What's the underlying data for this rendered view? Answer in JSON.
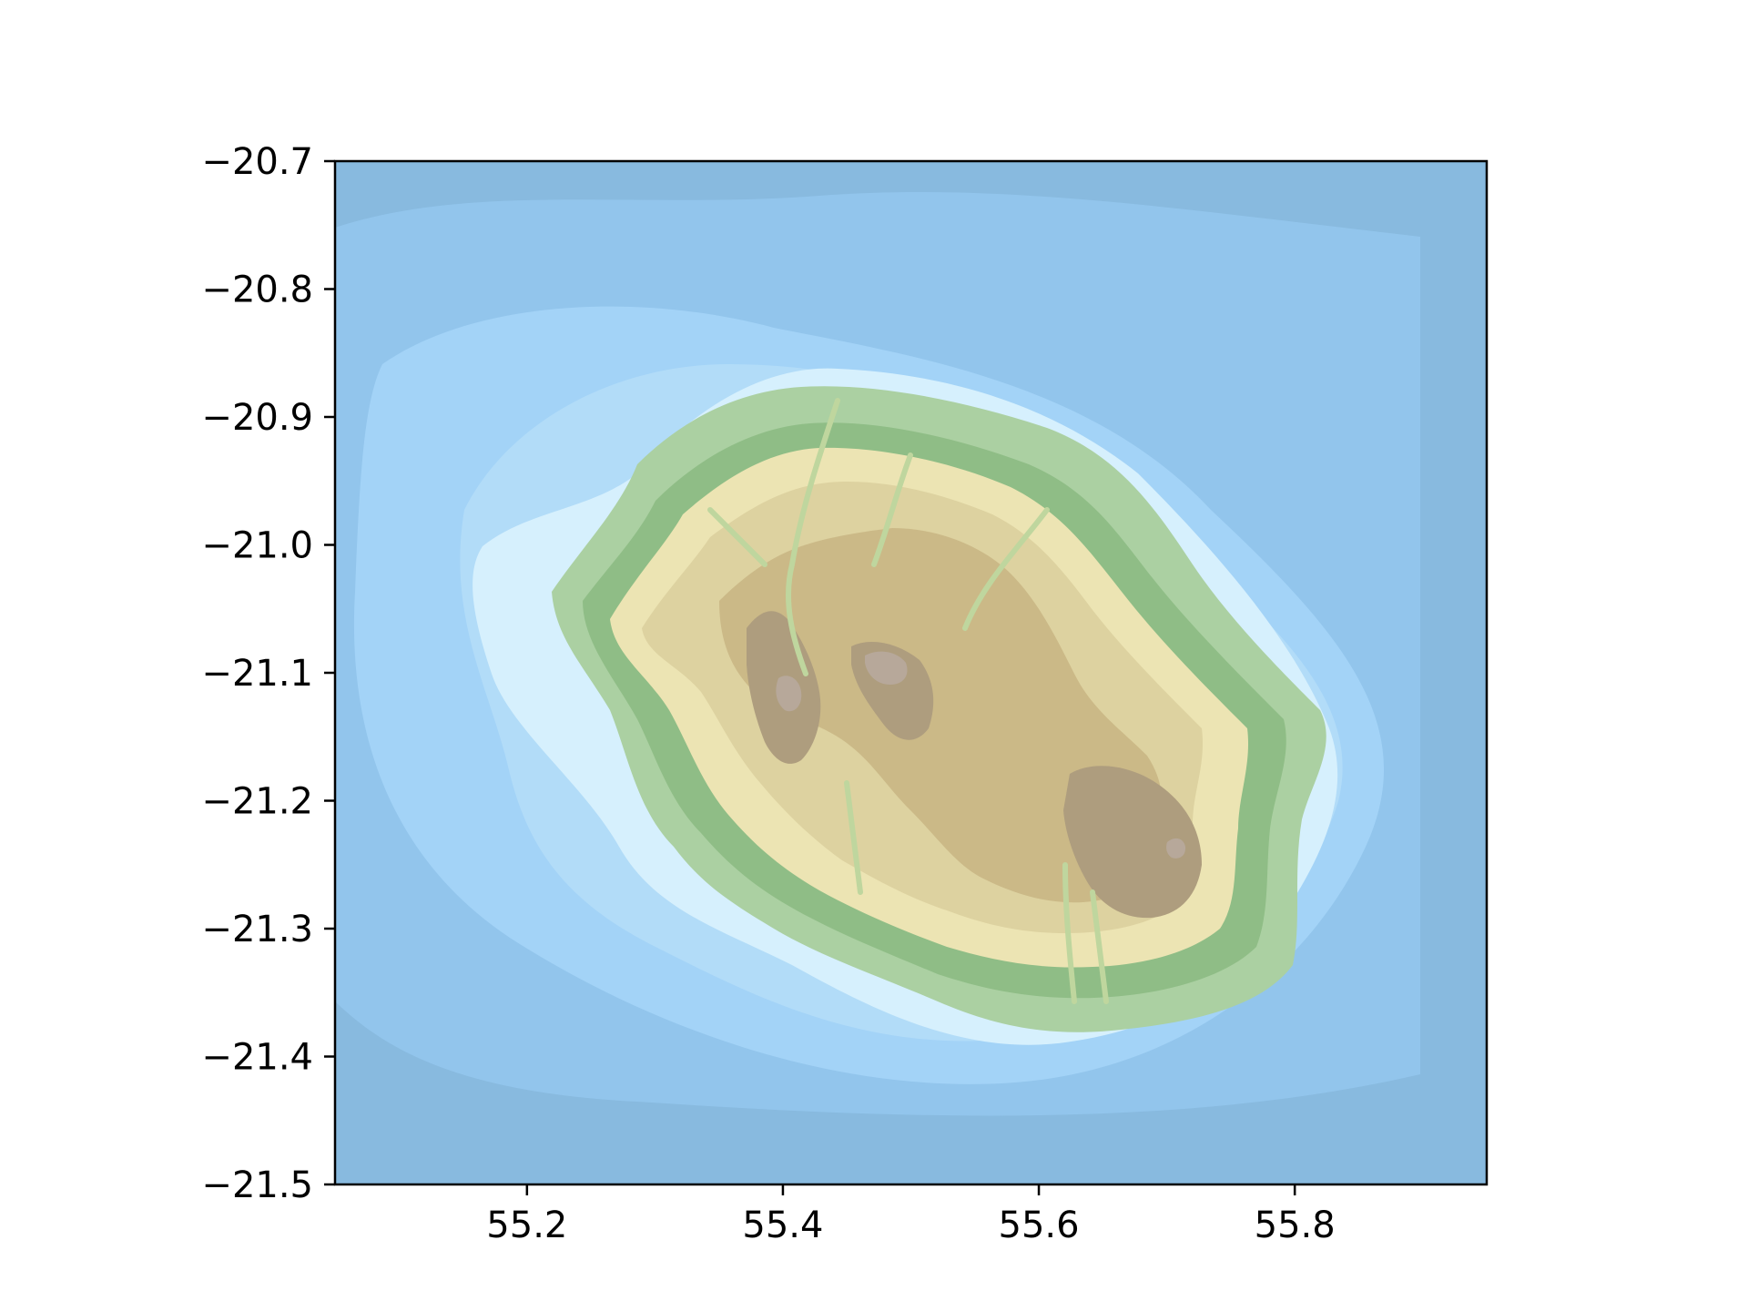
{
  "chart_data": {
    "type": "heatmap",
    "title": "",
    "xlabel": "",
    "ylabel": "",
    "xlim": [
      55.05,
      55.95
    ],
    "ylim": [
      -21.5,
      -20.7
    ],
    "xticks": [
      55.2,
      55.4,
      55.6,
      55.8
    ],
    "xtick_labels": [
      "55.2",
      "55.4",
      "55.6",
      "55.8"
    ],
    "yticks": [
      -20.7,
      -20.8,
      -20.9,
      -21.0,
      -21.1,
      -21.2,
      -21.3,
      -21.4,
      -21.5
    ],
    "ytick_labels": [
      "−20.7",
      "−20.8",
      "−20.9",
      "−21.0",
      "−21.1",
      "−21.2",
      "−21.3",
      "−21.4",
      "−21.5"
    ],
    "grid": false,
    "legend": "none",
    "colormap": {
      "deep_water": "#84b7e0",
      "water": "#92c5ec",
      "shallow_water": "#a3d3f7",
      "coast_water": "#d6f0fd",
      "lowland": "#abd0a2",
      "low_slope": "#8fbd86",
      "hills": "#ece4b3",
      "upland": "#ddd2a0",
      "high_upland": "#cbb987",
      "mountain": "#ae9d7e",
      "summit": "#b7a89a"
    },
    "elevation_peaks": [
      {
        "lon": 55.38,
        "lat": -21.12,
        "level": "mountain"
      },
      {
        "lon": 55.48,
        "lat": -21.09,
        "level": "summit"
      },
      {
        "lon": 55.45,
        "lat": -21.0,
        "level": "mountain"
      },
      {
        "lon": 55.7,
        "lat": -21.23,
        "level": "mountain"
      },
      {
        "lon": 55.72,
        "lat": -21.24,
        "level": "summit"
      }
    ]
  }
}
